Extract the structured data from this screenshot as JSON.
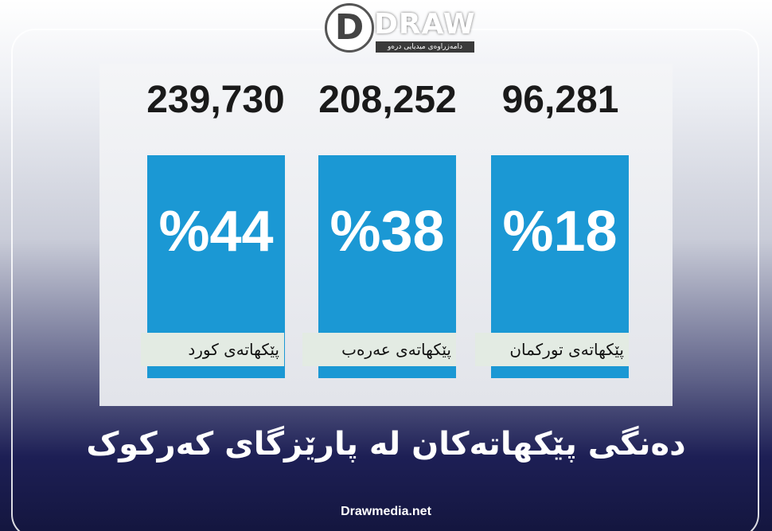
{
  "logo": {
    "name": "DRAW",
    "tagline": "دامەزراوەی میدیایی درەو"
  },
  "cards": [
    {
      "count": "239,730",
      "percent": "%44",
      "label": "پێکهاتەی کورد"
    },
    {
      "count": "208,252",
      "percent": "%38",
      "label": "پێکهاتەی عەرەب"
    },
    {
      "count": "96,281",
      "percent": "%18",
      "label": "پێکهاتەی تورکمان"
    }
  ],
  "title": "دەنگی پێکهاتەکان لە پارێزگای کەرکوک",
  "footer": "Drawmedia.net"
}
